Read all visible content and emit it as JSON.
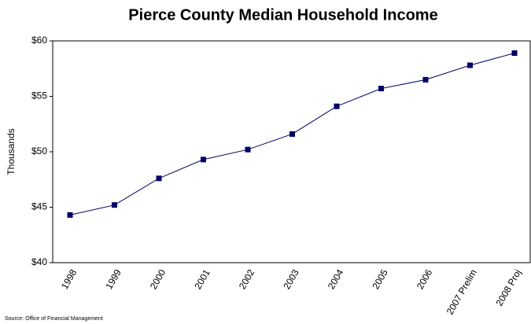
{
  "chart_data": {
    "type": "line",
    "title": "Pierce County Median Household Income",
    "y_label": "Thousands",
    "source": "Source: Office of Financial Management",
    "categories": [
      "1998",
      "1999",
      "2000",
      "2001",
      "2002",
      "2003",
      "2004",
      "2005",
      "2006",
      "2007 Prelim",
      "2008 Proj"
    ],
    "series": [
      {
        "name": "Median Household Income",
        "color": "#000066",
        "values": [
          44.3,
          45.2,
          47.6,
          49.3,
          50.2,
          51.6,
          54.1,
          55.7,
          56.5,
          57.8,
          58.9
        ]
      }
    ],
    "ylim": [
      40,
      60
    ],
    "yticks": [
      {
        "value": 40,
        "label": "$40"
      },
      {
        "value": 45,
        "label": "$45"
      },
      {
        "value": 50,
        "label": "$50"
      },
      {
        "value": 55,
        "label": "$55"
      },
      {
        "value": 60,
        "label": "$60"
      }
    ],
    "grid": false
  }
}
